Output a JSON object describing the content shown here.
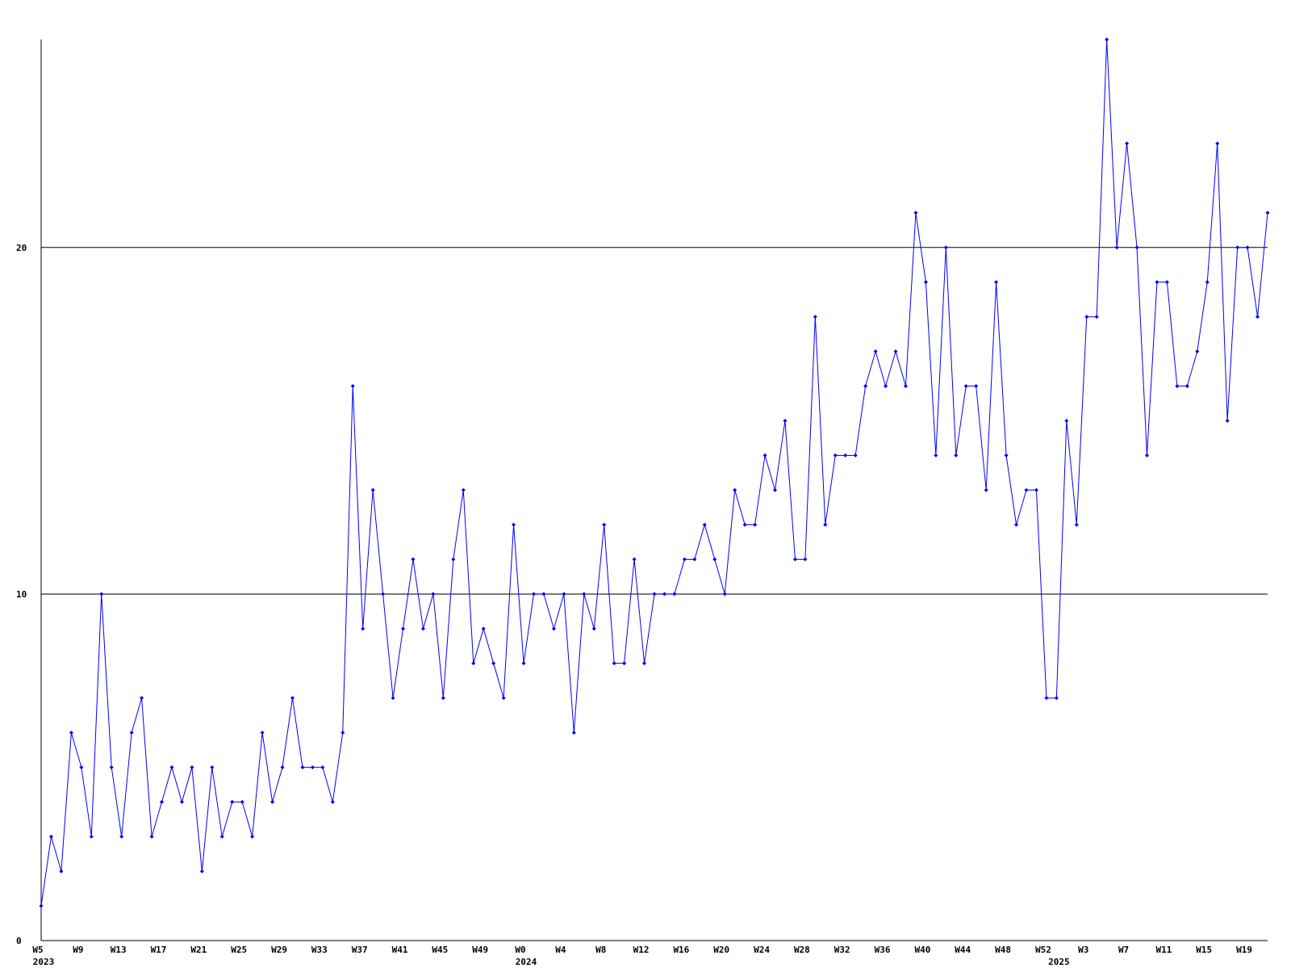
{
  "chart_data": {
    "type": "line",
    "categories": [
      "W5",
      null,
      null,
      null,
      "W9",
      null,
      null,
      null,
      "W13",
      null,
      null,
      null,
      "W17",
      null,
      null,
      null,
      "W21",
      null,
      null,
      null,
      "W25",
      null,
      null,
      null,
      "W29",
      null,
      null,
      null,
      "W33",
      null,
      null,
      null,
      "W37",
      null,
      null,
      null,
      "W41",
      null,
      null,
      null,
      "W45",
      null,
      null,
      null,
      "W49",
      null,
      null,
      null,
      "W0",
      null,
      null,
      null,
      "W4",
      null,
      null,
      null,
      "W8",
      null,
      null,
      null,
      "W12",
      null,
      null,
      null,
      "W16",
      null,
      null,
      null,
      "W20",
      null,
      null,
      null,
      "W24",
      null,
      null,
      null,
      "W28",
      null,
      null,
      null,
      "W32",
      null,
      null,
      null,
      "W36",
      null,
      null,
      null,
      "W40",
      null,
      null,
      null,
      "W44",
      null,
      null,
      null,
      "W48",
      null,
      null,
      null,
      "W52",
      null,
      null,
      null,
      "W3",
      null,
      null,
      null,
      "W7",
      null,
      null,
      null,
      "W11",
      null,
      null,
      null,
      "W15",
      null,
      null,
      null,
      "W19",
      null,
      null
    ],
    "year_categories": [
      "2023",
      null,
      null,
      null,
      null,
      null,
      null,
      null,
      null,
      null,
      null,
      null,
      null,
      null,
      null,
      null,
      null,
      null,
      null,
      null,
      null,
      null,
      null,
      null,
      null,
      null,
      null,
      null,
      null,
      null,
      null,
      null,
      null,
      null,
      null,
      null,
      null,
      null,
      null,
      null,
      null,
      null,
      null,
      null,
      null,
      null,
      null,
      null,
      "2024",
      null,
      null,
      null,
      null,
      null,
      null,
      null,
      null,
      null,
      null,
      null,
      null,
      null,
      null,
      null,
      null,
      null,
      null,
      null,
      null,
      null,
      null,
      null,
      null,
      null,
      null,
      null,
      null,
      null,
      null,
      null,
      null,
      null,
      null,
      null,
      null,
      null,
      null,
      null,
      null,
      null,
      null,
      null,
      null,
      null,
      null,
      null,
      null,
      null,
      null,
      null,
      null,
      "2025",
      null,
      null,
      null,
      null,
      null,
      null,
      null,
      null,
      null,
      null,
      null,
      null,
      null,
      null,
      null,
      null,
      null,
      null,
      null,
      null,
      null
    ],
    "values": [
      1,
      3,
      2,
      6,
      5,
      3,
      10,
      5,
      3,
      6,
      7,
      3,
      4,
      5,
      4,
      5,
      2,
      5,
      3,
      4,
      4,
      3,
      6,
      4,
      5,
      7,
      5,
      5,
      5,
      4,
      6,
      16,
      9,
      13,
      10,
      7,
      9,
      11,
      9,
      10,
      7,
      11,
      13,
      8,
      9,
      8,
      7,
      12,
      8,
      10,
      10,
      9,
      10,
      6,
      10,
      9,
      12,
      8,
      8,
      11,
      8,
      10,
      10,
      10,
      11,
      11,
      12,
      11,
      10,
      13,
      12,
      12,
      14,
      13,
      15,
      11,
      11,
      18,
      12,
      14,
      14,
      14,
      16,
      17,
      16,
      17,
      16,
      21,
      19,
      14,
      20,
      14,
      16,
      16,
      13,
      19,
      14,
      12,
      13,
      13,
      7,
      7,
      15,
      12,
      18,
      18,
      26,
      20,
      23,
      20,
      14,
      19,
      19,
      16,
      16,
      17,
      19,
      23,
      15,
      20,
      20,
      18,
      21
    ],
    "color": "#0000ff",
    "ylim": [
      0,
      26
    ],
    "yticks": [
      0,
      10,
      20
    ],
    "grid": true
  }
}
